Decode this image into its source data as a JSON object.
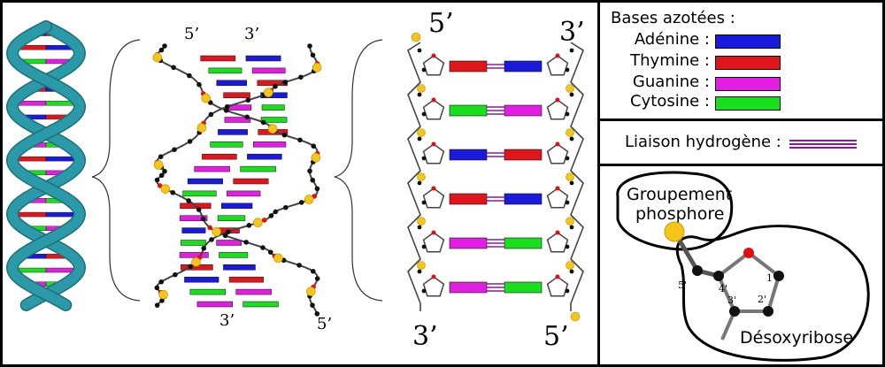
{
  "colors": {
    "adenine": "#1a1adc",
    "thymine": "#e0161c",
    "guanine": "#e21ee2",
    "cytosine": "#18e01c",
    "hydrogen_bond": "#8a1a9a",
    "backbone": "#2a9aa8",
    "phosphate": "#f5c518",
    "oxygen": "#e01010",
    "carbon": "#111111"
  },
  "legend": {
    "bases_title": "Bases azotées :",
    "bases": [
      {
        "label": "Adénine :",
        "color_key": "adenine"
      },
      {
        "label": "Thymine :",
        "color_key": "thymine"
      },
      {
        "label": "Guanine :",
        "color_key": "guanine"
      },
      {
        "label": "Cytosine :",
        "color_key": "cytosine"
      }
    ],
    "hbond_label": "Liaison hydrogène :"
  },
  "helix_labels": {
    "top_left": "5’",
    "top_right": "3’",
    "bottom_left": "3’",
    "bottom_right": "5’"
  },
  "ladder_labels": {
    "top_left": "5’",
    "top_right": "3’",
    "bottom_left": "3’",
    "bottom_right": "5’"
  },
  "ladder_pairs": [
    [
      "thymine",
      "adenine"
    ],
    [
      "cytosine",
      "guanine"
    ],
    [
      "adenine",
      "thymine"
    ],
    [
      "thymine",
      "adenine"
    ],
    [
      "guanine",
      "cytosine"
    ],
    [
      "guanine",
      "cytosine"
    ]
  ],
  "sugar_panel": {
    "phosphate_group_label_1": "Groupement",
    "phosphate_group_label_2": "phosphore",
    "sugar_label": "Désoxyribose",
    "carbon_labels": [
      "5'",
      "4'",
      "3'",
      "2'",
      "1'"
    ]
  }
}
